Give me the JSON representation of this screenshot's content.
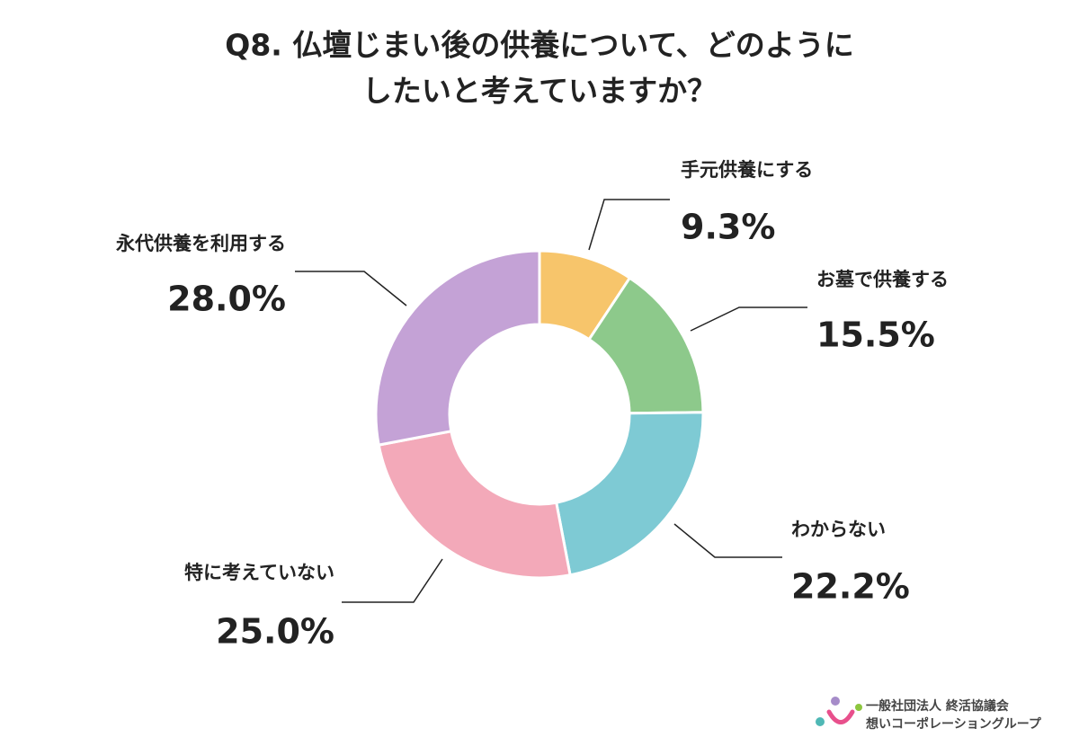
{
  "chart_data": {
    "type": "donut",
    "title": [
      "Q8. 仏壇じまい後の供養について、どのように",
      "したいと考えていますか？"
    ],
    "categories": [
      "手元供養にする",
      "お墓で供養する",
      "わからない",
      "特に考えていない",
      "永代供養を利用する"
    ],
    "values": [
      9.3,
      15.5,
      22.2,
      25.0,
      28.0
    ],
    "value_labels": [
      "9.3%",
      "15.5%",
      "22.2%",
      "25.0%",
      "28.0%"
    ],
    "colors": [
      "#f7c56b",
      "#8dc98b",
      "#7ecad4",
      "#f3a9b9",
      "#c4a2d6"
    ]
  },
  "logo": {
    "line1": "一般社団法人 終活協議会",
    "line2": "想いコーポレーショングループ"
  }
}
